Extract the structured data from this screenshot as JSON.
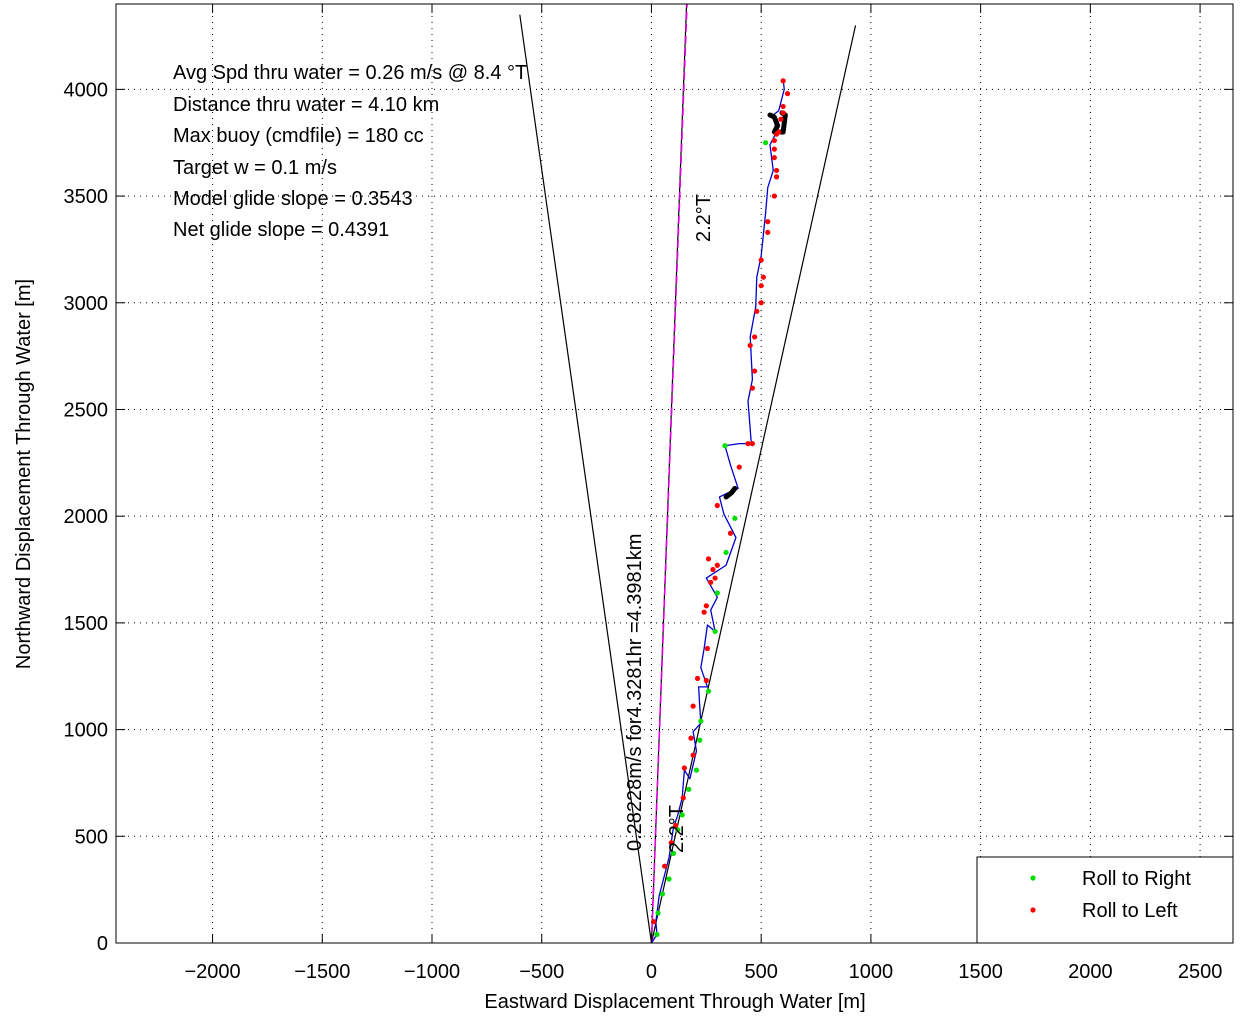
{
  "chart_data": {
    "type": "scatter",
    "xlabel": "Eastward Displacement Through Water [m]",
    "ylabel": "Northward Displacement Through Water [m]",
    "xlim": [
      -2440,
      2650
    ],
    "ylim": [
      0,
      4400
    ],
    "grid": true,
    "legend_placement": "bottom-right",
    "x_ticks": [
      -2000,
      -1500,
      -1000,
      -500,
      0,
      500,
      1000,
      1500,
      2000,
      2500
    ],
    "x_tick_labels": [
      "−2000",
      "−1500",
      "−1000",
      "−500",
      "0",
      "500",
      "1000",
      "1500",
      "2000",
      "2500"
    ],
    "y_ticks": [
      0,
      500,
      1000,
      1500,
      2000,
      2500,
      3000,
      3500,
      4000
    ],
    "y_tick_labels": [
      "0",
      "500",
      "1000",
      "1500",
      "2000",
      "2500",
      "3000",
      "3500",
      "4000"
    ],
    "text_annotations": [
      "Avg Spd thru water =  0.26 m/s @   8.4    °T",
      "Distance thru water =  4.10 km",
      "Max buoy (cmdfile) = 180 cc",
      "Target w = 0.1 m/s",
      "Model glide slope = 0.3543",
      "Net glide slope = 0.4391"
    ],
    "rotated_labels": {
      "upper_heading": "2.2°T",
      "lower_heading": "2.2°T",
      "speed_line": "0.28228m/s for4.3281hr =4.3981km"
    },
    "guide_lines": [
      {
        "x": [
          -600,
          0,
          930
        ],
        "y": [
          4350,
          0,
          4300
        ],
        "color": "#000000"
      },
      {
        "x": [
          0,
          160
        ],
        "y": [
          0,
          4400
        ],
        "color": "#000000"
      },
      {
        "x": [
          0,
          162
        ],
        "y": [
          0,
          4400
        ],
        "color": "#e000e0",
        "dashed": true
      }
    ],
    "series": [
      {
        "name": "Roll to Right",
        "color": "#00e000",
        "points": [
          [
            25,
            40
          ],
          [
            30,
            140
          ],
          [
            50,
            230
          ],
          [
            80,
            300
          ],
          [
            100,
            420
          ],
          [
            120,
            530
          ],
          [
            140,
            600
          ],
          [
            170,
            720
          ],
          [
            205,
            810
          ],
          [
            220,
            950
          ],
          [
            225,
            1040
          ],
          [
            260,
            1180
          ],
          [
            290,
            1460
          ],
          [
            300,
            1640
          ],
          [
            340,
            1830
          ],
          [
            380,
            1990
          ],
          [
            335,
            2330
          ],
          [
            520,
            3750
          ]
        ]
      },
      {
        "name": "Roll to Left",
        "color": "#ff0000",
        "points": [
          [
            10,
            100
          ],
          [
            60,
            360
          ],
          [
            90,
            470
          ],
          [
            110,
            550
          ],
          [
            145,
            680
          ],
          [
            150,
            820
          ],
          [
            190,
            880
          ],
          [
            180,
            960
          ],
          [
            190,
            1110
          ],
          [
            210,
            1240
          ],
          [
            250,
            1230
          ],
          [
            255,
            1380
          ],
          [
            240,
            1550
          ],
          [
            250,
            1580
          ],
          [
            270,
            1690
          ],
          [
            290,
            1710
          ],
          [
            280,
            1750
          ],
          [
            300,
            1770
          ],
          [
            260,
            1800
          ],
          [
            360,
            1920
          ],
          [
            300,
            2050
          ],
          [
            400,
            2230
          ],
          [
            440,
            2340
          ],
          [
            460,
            2340
          ],
          [
            460,
            2600
          ],
          [
            470,
            2680
          ],
          [
            450,
            2800
          ],
          [
            470,
            2840
          ],
          [
            480,
            2960
          ],
          [
            500,
            3000
          ],
          [
            500,
            3080
          ],
          [
            510,
            3120
          ],
          [
            500,
            3200
          ],
          [
            530,
            3330
          ],
          [
            530,
            3380
          ],
          [
            560,
            3500
          ],
          [
            570,
            3590
          ],
          [
            570,
            3620
          ],
          [
            560,
            3680
          ],
          [
            560,
            3720
          ],
          [
            560,
            3760
          ],
          [
            570,
            3790
          ],
          [
            580,
            3800
          ],
          [
            590,
            3860
          ],
          [
            600,
            3890
          ],
          [
            600,
            3920
          ],
          [
            620,
            3980
          ],
          [
            600,
            4040
          ]
        ]
      }
    ],
    "glider_track": {
      "color": "#0000cc",
      "x": [
        0,
        25,
        20,
        35,
        55,
        80,
        100,
        120,
        140,
        150,
        175,
        205,
        190,
        225,
        220,
        215,
        255,
        225,
        240,
        255,
        290,
        270,
        300,
        250,
        340,
        385,
        330,
        310,
        350,
        395,
        360,
        335,
        400,
        455,
        440,
        460,
        450,
        475,
        480,
        500,
        520,
        530,
        555,
        540,
        570,
        555,
        580,
        605,
        600
      ],
      "y": [
        0,
        40,
        100,
        220,
        300,
        400,
        540,
        600,
        680,
        810,
        770,
        900,
        990,
        1030,
        1110,
        1200,
        1200,
        1290,
        1380,
        1490,
        1460,
        1560,
        1620,
        1710,
        1770,
        1900,
        2010,
        2090,
        2110,
        2130,
        2240,
        2330,
        2340,
        2340,
        2540,
        2640,
        2840,
        2980,
        3120,
        3220,
        3420,
        3540,
        3620,
        3740,
        3800,
        3880,
        3900,
        4000,
        4050
      ]
    },
    "surfacing_track": {
      "color": "#000000",
      "segments": [
        {
          "x": [
            340,
            365,
            380
          ],
          "y": [
            2090,
            2110,
            2130
          ]
        },
        {
          "x": [
            540,
            560,
            575,
            560,
            600,
            610,
            595
          ],
          "y": [
            3880,
            3870,
            3830,
            3800,
            3800,
            3880,
            3890
          ]
        }
      ]
    }
  }
}
